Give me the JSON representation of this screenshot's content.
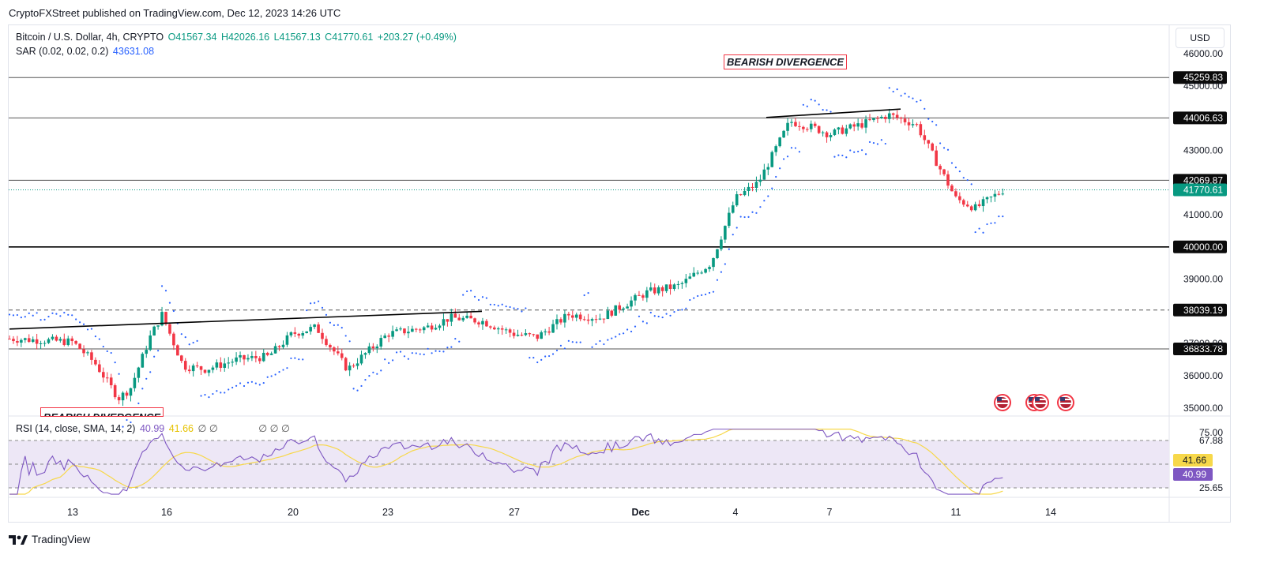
{
  "publish_text": "CryptoFXStreet published on TradingView.com, Dec 12, 2023 14:26 UTC",
  "currency_button": "USD",
  "brand": "TradingView",
  "legend": {
    "symbol": "Bitcoin / U.S. Dollar, 4h, CRYPTO",
    "open": "O41567.34",
    "high": "H42026.16",
    "low": "L41567.13",
    "close": "C41770.61",
    "change": "+203.27 (+0.49%)",
    "sar_label": "SAR (0.02, 0.02, 0.2)",
    "sar_value": "43631.08",
    "rsi_label": "RSI (14, close, SMA, 14, 2)",
    "rsi_value": "40.99",
    "rsi_sma_value": "41.66",
    "rsi_extras": "∅ ∅",
    "rsi_extras2": "∅ ∅ ∅"
  },
  "annotations": {
    "top": "BEARISH DIVERGENCE",
    "bottom": "BEARISH DIVERGENCE"
  },
  "colors": {
    "up": "#089981",
    "down": "#f23645",
    "sar": "#2962ff",
    "rsi": "#7e57c2",
    "rsi_sma": "#f7d84a",
    "rsi_band": "#ede7f6"
  },
  "chart_data": [
    {
      "type": "candlestick",
      "title": "Bitcoin / U.S. Dollar, 4h, CRYPTO",
      "x_ticks": [
        "13",
        "16",
        "20",
        "23",
        "27",
        "Dec",
        "4",
        "7",
        "11",
        "14"
      ],
      "y_ticks": [
        35000,
        36000,
        37000,
        39000,
        41000,
        43000,
        45000,
        46000
      ],
      "y_tick_labels": [
        "35000.00",
        "36000.00",
        "37000.00",
        "39000.00",
        "41000.00",
        "43000.00",
        "45000.00",
        "46000.00"
      ],
      "ylim": [
        34800,
        46300
      ],
      "horizontal_levels": [
        {
          "value": 45259.83,
          "label": "45259.83",
          "style": "solid"
        },
        {
          "value": 44006.63,
          "label": "44006.63",
          "style": "solid"
        },
        {
          "value": 42069.87,
          "label": "42069.87",
          "style": "solid"
        },
        {
          "value": 40000.0,
          "label": "40000.00",
          "style": "solid"
        },
        {
          "value": 38039.19,
          "label": "38039.19",
          "style": "dashed"
        },
        {
          "value": 36833.78,
          "label": "36833.78",
          "style": "solid"
        }
      ],
      "last_price": {
        "value": 41770.61,
        "label": "41770.61"
      },
      "close_path": [
        [
          "Nov 11",
          37150
        ],
        [
          "Nov 12",
          37100
        ],
        [
          "Nov 13",
          37050
        ],
        [
          "Nov 14",
          36400
        ],
        [
          "Nov 14.5",
          35300
        ],
        [
          "Nov 15",
          35600
        ],
        [
          "Nov 15.5",
          37200
        ],
        [
          "Nov 16",
          37900
        ],
        [
          "Nov 16.5",
          36300
        ],
        [
          "Nov 17",
          36200
        ],
        [
          "Nov 18",
          36500
        ],
        [
          "Nov 19",
          36600
        ],
        [
          "Nov 20",
          37300
        ],
        [
          "Nov 21",
          37500
        ],
        [
          "Nov 22",
          36200
        ],
        [
          "Nov 23",
          37300
        ],
        [
          "Nov 24",
          37500
        ],
        [
          "Nov 25",
          37800
        ],
        [
          "Nov 26",
          37700
        ],
        [
          "Nov 27",
          37300
        ],
        [
          "Nov 28",
          37200
        ],
        [
          "Nov 29",
          37900
        ],
        [
          "Nov 30",
          37800
        ],
        [
          "Dec 1",
          38600
        ],
        [
          "Dec 2",
          38800
        ],
        [
          "Dec 3",
          39500
        ],
        [
          "Dec 4",
          41500
        ],
        [
          "Dec 5",
          42000
        ],
        [
          "Dec 5.5",
          43900
        ],
        [
          "Dec 6",
          43700
        ],
        [
          "Dec 7",
          43500
        ],
        [
          "Dec 8",
          43800
        ],
        [
          "Dec 9",
          44100
        ],
        [
          "Dec 10",
          43800
        ],
        [
          "Dec 11",
          41500
        ],
        [
          "Dec 11.5",
          41200
        ],
        [
          "Dec 12",
          41770
        ]
      ]
    },
    {
      "type": "line",
      "title": "RSI (14, close, SMA, 14, 2)",
      "series": [
        {
          "name": "RSI",
          "last": 40.99
        },
        {
          "name": "SMA",
          "last": 41.66
        }
      ],
      "y_ticks": [
        25.65,
        67.88,
        75.0
      ],
      "y_tick_labels": [
        "25.65",
        "67.88",
        "75.00"
      ],
      "ylim": [
        20,
        80
      ]
    }
  ]
}
